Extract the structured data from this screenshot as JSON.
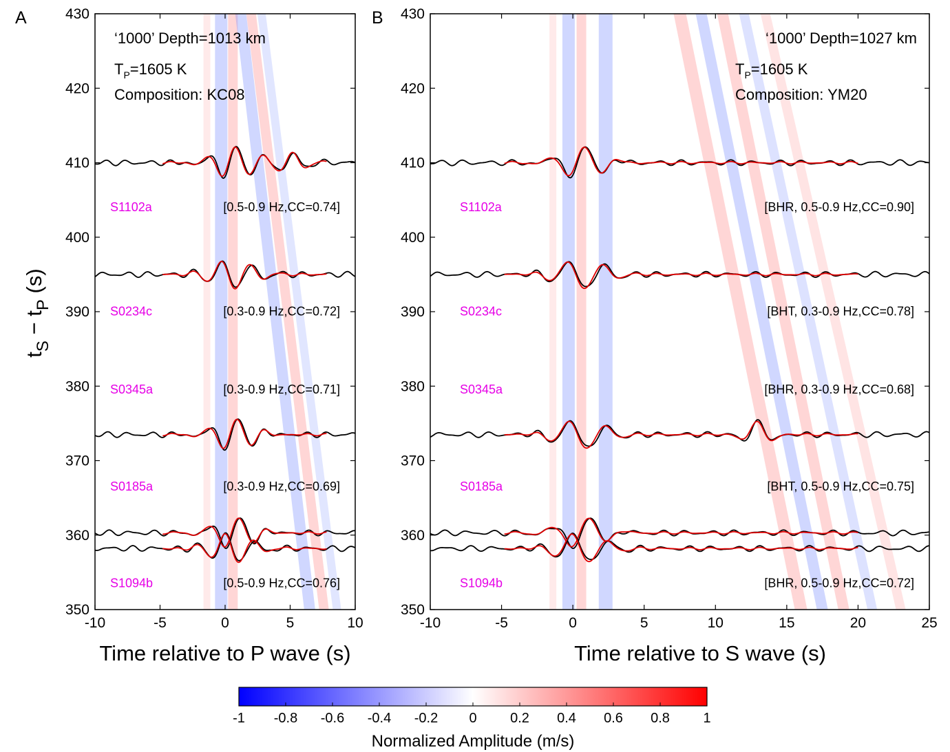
{
  "chart_data": [
    {
      "type": "line",
      "panel_label": "A",
      "xlabel": "Time relative to P wave (s)",
      "ylabel_main": "t",
      "ylabel_sub1": "S",
      "ylabel_mid": " − t",
      "ylabel_sub2": "P",
      "ylabel_unit": " (s)",
      "xlim": [
        -10,
        10
      ],
      "ylim": [
        350,
        430
      ],
      "xticks": [
        "-10",
        "-5",
        "0",
        "5",
        "10"
      ],
      "yticks": [
        "350",
        "360",
        "370",
        "380",
        "390",
        "400",
        "410",
        "420",
        "430"
      ],
      "annotation": {
        "line1": "‘1000’ Depth=1013 km",
        "line2_main": "T",
        "line2_sub": "P",
        "line2_rest": "=1605 K",
        "line3": "Composition: KC08"
      },
      "events": [
        {
          "station": "S1102a",
          "band": "[0.5-0.9 Hz,CC=0.74]",
          "baseline": [
            410
          ],
          "label_y": 403.5
        },
        {
          "station": "S0234c",
          "band": "[0.3-0.9 Hz,CC=0.72]",
          "baseline": [
            395
          ],
          "label_y": 389.5
        },
        {
          "station": "S0345a",
          "band": "[0.3-0.9 Hz,CC=0.71]",
          "baseline": [
            373.5
          ],
          "label_y": 379
        },
        {
          "station": "S0185a",
          "band": "[0.3-0.9 Hz,CC=0.69]",
          "baseline": [],
          "label_y": 366
        },
        {
          "station": "S1094b",
          "band": "[0.5-0.9 Hz,CC=0.76]",
          "baseline": [
            360.3,
            358.2
          ],
          "label_y": 353
        }
      ],
      "series": [
        {
          "color": "#000000"
        },
        {
          "color": "#e00000"
        }
      ]
    },
    {
      "type": "line",
      "panel_label": "B",
      "xlabel": "Time relative to S wave (s)",
      "xlim": [
        -10,
        25
      ],
      "ylim": [
        350,
        430
      ],
      "xticks": [
        "-10",
        "-5",
        "0",
        "5",
        "10",
        "15",
        "20",
        "25"
      ],
      "yticks": [
        "350",
        "360",
        "370",
        "380",
        "390",
        "400",
        "410",
        "420",
        "430"
      ],
      "annotation": {
        "line1": "‘1000’ Depth=1027 km",
        "line2_main": "T",
        "line2_sub": "P",
        "line2_rest": "=1605 K",
        "line3": "Composition: YM20"
      },
      "events": [
        {
          "station": "S1102a",
          "band": "[BHR, 0.5-0.9 Hz,CC=0.90]",
          "baseline": [
            410
          ],
          "label_y": 403.5
        },
        {
          "station": "S0234c",
          "band": "[BHT, 0.3-0.9 Hz,CC=0.78]",
          "baseline": [
            395
          ],
          "label_y": 389.5
        },
        {
          "station": "S0345a",
          "band": "[BHR, 0.3-0.9 Hz,CC=0.68]",
          "baseline": [],
          "label_y": 379
        },
        {
          "station": "S0185a",
          "band": "[BHT, 0.5-0.9 Hz,CC=0.75]",
          "baseline": [
            373.5
          ],
          "label_y": 366
        },
        {
          "station": "S1094b",
          "band": "[BHR, 0.5-0.9 Hz,CC=0.72]",
          "baseline": [
            360.3,
            358.2
          ],
          "label_y": 353
        }
      ],
      "series": [
        {
          "color": "#000000"
        },
        {
          "color": "#e00000"
        }
      ]
    }
  ],
  "colorbar": {
    "label": "Normalized Amplitude (m/s)",
    "range": [
      -1,
      1
    ],
    "ticks": [
      "-1",
      "-0.8",
      "-0.6",
      "-0.4",
      "-0.2",
      "0",
      "0.2",
      "0.4",
      "0.6",
      "0.8",
      "1"
    ],
    "color_negative": "#0000ff",
    "color_zero": "#ffffff",
    "color_positive": "#ff0000"
  }
}
